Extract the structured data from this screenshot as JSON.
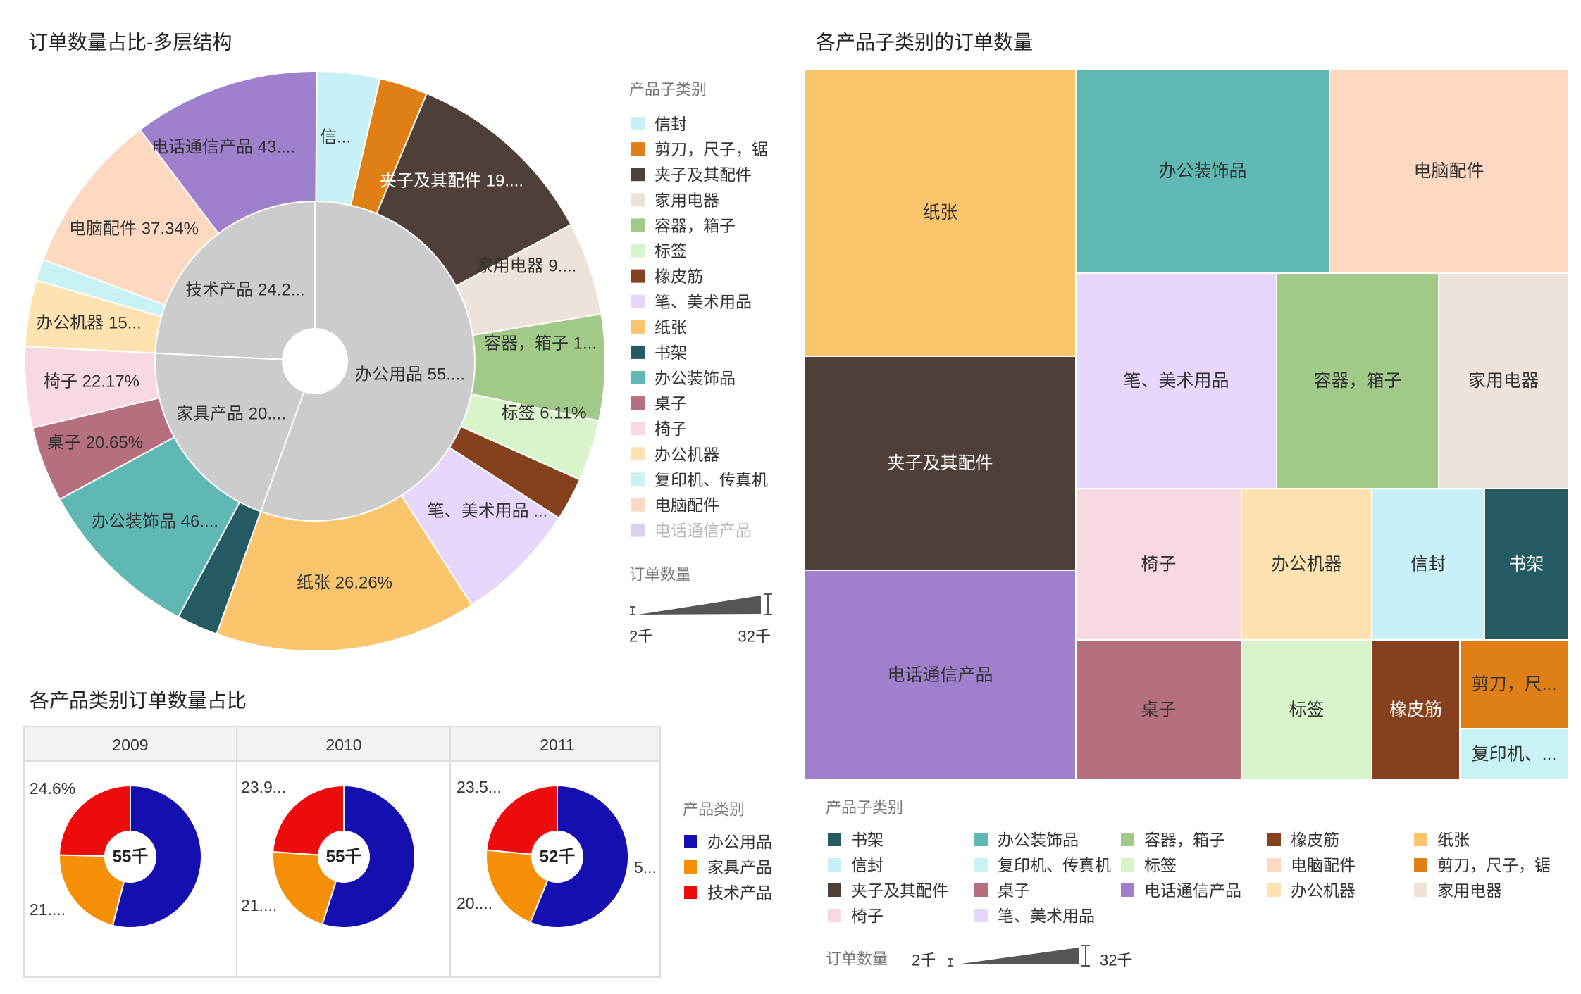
{
  "colors": {
    "信封": "#c8f1f7",
    "剪刀，尺子，锯": "#e07f16",
    "夹子及其配件": "#4e4038",
    "家用电器": "#ede3da",
    "容器，箱子": "#a1c988",
    "标签": "#d9f3cb",
    "橡皮筋": "#85401e",
    "笔、美术用品": "#e7d7fd",
    "纸张": "#fbc56d",
    "书架": "#245b63",
    "办公装饰品": "#60b8b5",
    "桌子": "#b66f7f",
    "椅子": "#f8d9e1",
    "办公机器": "#fee3b0",
    "复印机、传真机": "#c8f2f4",
    "电脑配件": "#fed9c2",
    "电话通信产品": "#9f80cd",
    "inner": "#cccccc",
    "办公用品": "#160fb0",
    "家具产品": "#f59006",
    "技术产品": "#ee0b0b"
  },
  "sunburst": {
    "title": "订单数量占比-多层结构",
    "legend_title": "产品子类别",
    "legend_items": [
      "信封",
      "剪刀，尺子，锯",
      "夹子及其配件",
      "家用电器",
      "容器，箱子",
      "标签",
      "橡皮筋",
      "笔、美术用品",
      "纸张",
      "书架",
      "办公装饰品",
      "桌子",
      "椅子",
      "办公机器",
      "复印机、传真机",
      "电脑配件",
      "电话通信产品"
    ],
    "size_title": "订单数量",
    "size_min": "2千",
    "size_max": "32千"
  },
  "treemap": {
    "title": "各产品子类别的订单数量",
    "legend_title": "产品子类别",
    "legend_items": [
      "书架",
      "办公装饰品",
      "容器，箱子",
      "橡皮筋",
      "纸张",
      "信封",
      "复印机、传真机",
      "标签",
      "电脑配件",
      "剪刀，尺子，锯",
      "夹子及其配件",
      "桌子",
      "电话通信产品",
      "办公机器",
      "家用电器",
      "椅子",
      "笔、美术用品"
    ],
    "size_title": "订单数量",
    "size_min": "2千",
    "size_max": "32千"
  },
  "donuts": {
    "title": "各产品类别订单数量占比",
    "legend_title": "产品类别",
    "legend_items": [
      "办公用品",
      "家具产品",
      "技术产品"
    ]
  },
  "chart_data": [
    {
      "type": "pie",
      "title": "订单数量占比-多层结构",
      "inner_ring": [
        {
          "name": "办公用品",
          "label": "办公用品 55....",
          "share": 0.555
        },
        {
          "name": "家具产品",
          "label": "家具产品 20....",
          "share": 0.203
        },
        {
          "name": "技术产品",
          "label": "技术产品 24.2...",
          "share": 0.242
        }
      ],
      "outer_ring": [
        {
          "name": "信封",
          "parent": "办公用品",
          "label": "信...",
          "share": 0.036
        },
        {
          "name": "剪刀，尺子，锯",
          "parent": "办公用品",
          "label": "",
          "share": 0.027
        },
        {
          "name": "夹子及其配件",
          "parent": "办公用品",
          "label": "夹子及其配件 19....",
          "share": 0.109
        },
        {
          "name": "家用电器",
          "parent": "办公用品",
          "label": "家用电器 9....",
          "share": 0.052
        },
        {
          "name": "容器，箱子",
          "parent": "办公用品",
          "label": "容器，箱子 1...",
          "share": 0.059
        },
        {
          "name": "标签",
          "parent": "办公用品",
          "label": "标签 6.11%",
          "share": 0.034
        },
        {
          "name": "橡皮筋",
          "parent": "办公用品",
          "label": "",
          "share": 0.024
        },
        {
          "name": "笔、美术用品",
          "parent": "办公用品",
          "label": "笔、美术用品 ...",
          "share": 0.068
        },
        {
          "name": "纸张",
          "parent": "办公用品",
          "label": "纸张 26.26%",
          "share": 0.146
        },
        {
          "name": "书架",
          "parent": "家具产品",
          "label": "",
          "share": 0.023
        },
        {
          "name": "办公装饰品",
          "parent": "家具产品",
          "label": "办公装饰品 46....",
          "share": 0.093
        },
        {
          "name": "桌子",
          "parent": "家具产品",
          "label": "桌子 20.65%",
          "share": 0.042
        },
        {
          "name": "椅子",
          "parent": "家具产品",
          "label": "椅子 22.17%",
          "share": 0.045
        },
        {
          "name": "办公机器",
          "parent": "技术产品",
          "label": "办公机器 15...",
          "share": 0.037
        },
        {
          "name": "复印机、传真机",
          "parent": "技术产品",
          "label": "",
          "share": 0.012
        },
        {
          "name": "电脑配件",
          "parent": "技术产品",
          "label": "电脑配件 37.34%",
          "share": 0.09
        },
        {
          "name": "电话通信产品",
          "parent": "技术产品",
          "label": "电话通信产品 43....",
          "share": 0.104
        }
      ]
    },
    {
      "type": "heatmap",
      "subtype": "treemap",
      "title": "各产品子类别的订单数量",
      "items": [
        {
          "name": "纸张",
          "label": "纸张"
        },
        {
          "name": "夹子及其配件",
          "label": "夹子及其配件"
        },
        {
          "name": "电话通信产品",
          "label": "电话通信产品"
        },
        {
          "name": "办公装饰品",
          "label": "办公装饰品"
        },
        {
          "name": "电脑配件",
          "label": "电脑配件"
        },
        {
          "name": "笔、美术用品",
          "label": "笔、美术用品"
        },
        {
          "name": "容器，箱子",
          "label": "容器，箱子"
        },
        {
          "name": "家用电器",
          "label": "家用电器"
        },
        {
          "name": "椅子",
          "label": "椅子"
        },
        {
          "name": "办公机器",
          "label": "办公机器"
        },
        {
          "name": "信封",
          "label": "信封"
        },
        {
          "name": "书架",
          "label": "书架"
        },
        {
          "name": "桌子",
          "label": "桌子"
        },
        {
          "name": "标签",
          "label": "标签"
        },
        {
          "name": "橡皮筋",
          "label": "橡皮筋"
        },
        {
          "name": "剪刀，尺子，锯",
          "label": "剪刀，尺..."
        },
        {
          "name": "复印机、传真机",
          "label": "复印机、..."
        }
      ]
    },
    {
      "type": "pie",
      "title": "各产品类别订单数量占比",
      "facets": [
        {
          "year": "2009",
          "total_label": "55千",
          "labels": [
            "24.6%",
            "21...."
          ],
          "slices": [
            {
              "name": "办公用品",
              "share": 0.54
            },
            {
              "name": "家具产品",
              "share": 0.214
            },
            {
              "name": "技术产品",
              "share": 0.246
            }
          ]
        },
        {
          "year": "2010",
          "total_label": "55千",
          "labels": [
            "23.9...",
            "21...."
          ],
          "slices": [
            {
              "name": "办公用品",
              "share": 0.549
            },
            {
              "name": "家具产品",
              "share": 0.212
            },
            {
              "name": "技术产品",
              "share": 0.239
            }
          ]
        },
        {
          "year": "2011",
          "total_label": "52千",
          "labels": [
            "23.5...",
            "20....",
            "5..."
          ],
          "slices": [
            {
              "name": "办公用品",
              "share": 0.562
            },
            {
              "name": "家具产品",
              "share": 0.203
            },
            {
              "name": "技术产品",
              "share": 0.235
            }
          ]
        }
      ]
    }
  ]
}
